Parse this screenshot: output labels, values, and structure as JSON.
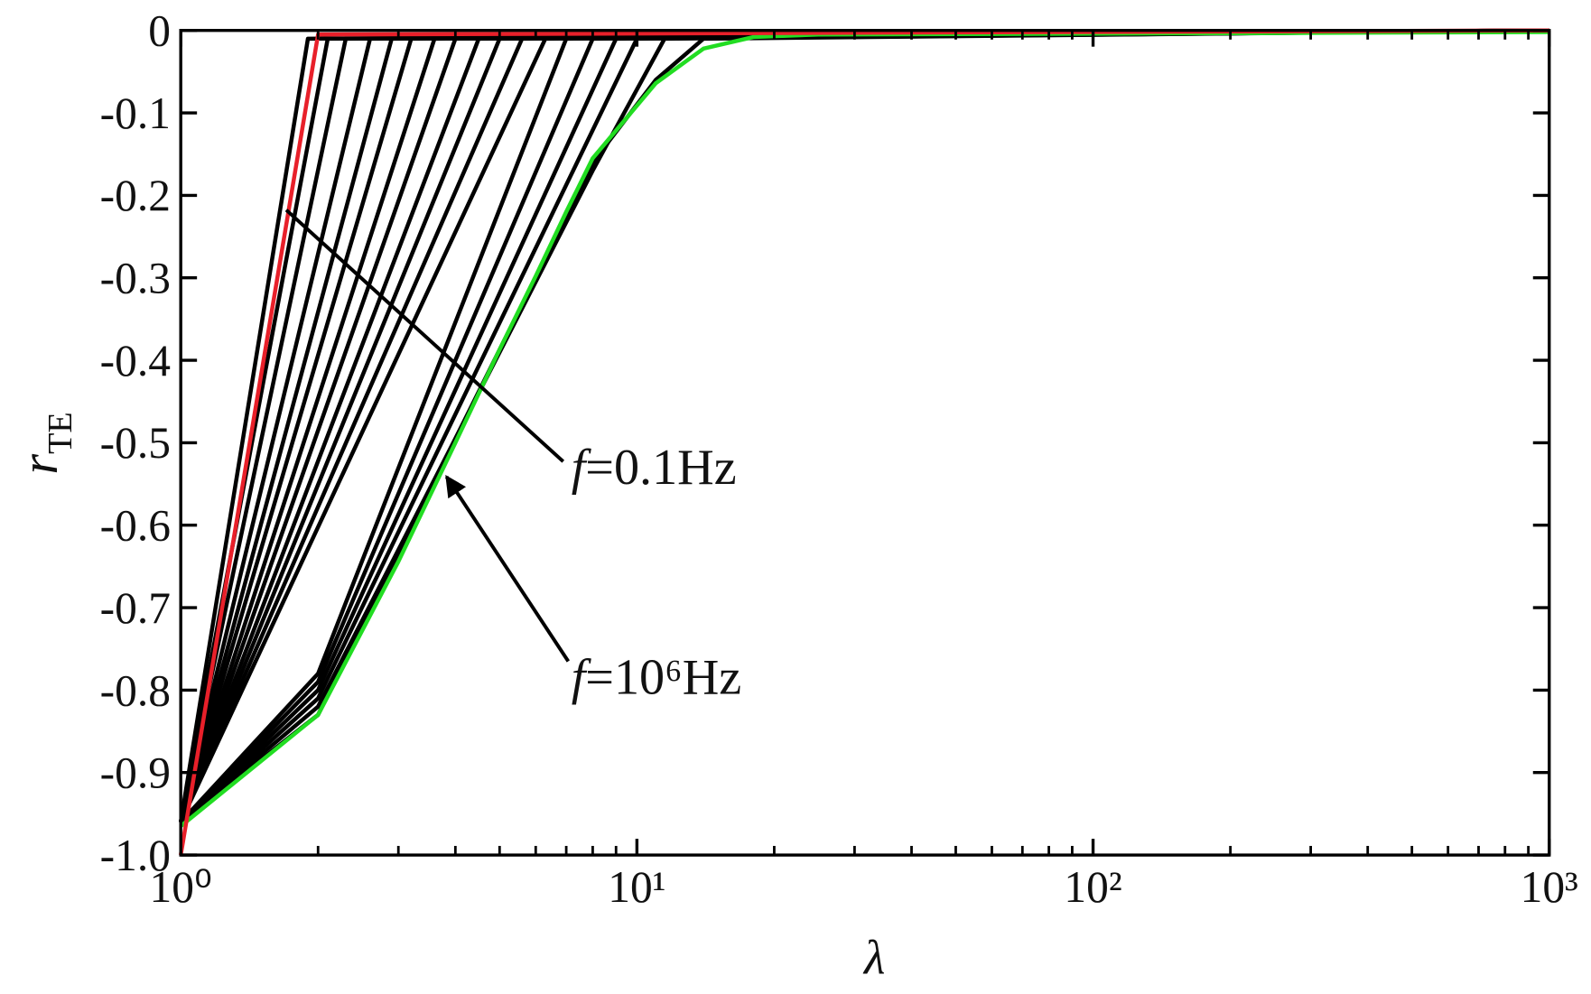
{
  "chart_data": {
    "type": "line",
    "xlabel": "λ",
    "ylabel": {
      "symbol": "r",
      "subscript": "TE"
    },
    "xscale": "log",
    "xlim": [
      1,
      1000
    ],
    "ylim": [
      -1.0,
      0
    ],
    "xticks": [
      {
        "value": 1,
        "label": "10⁰"
      },
      {
        "value": 10,
        "label": "10¹"
      },
      {
        "value": 100,
        "label": "10²"
      },
      {
        "value": 1000,
        "label": "10³"
      }
    ],
    "xminorticks": [
      2,
      3,
      4,
      5,
      6,
      7,
      8,
      9,
      20,
      30,
      40,
      50,
      60,
      70,
      80,
      90,
      200,
      300,
      400,
      500,
      600,
      700,
      800,
      900
    ],
    "yticks": [
      0,
      -0.1,
      -0.2,
      -0.3,
      -0.4,
      -0.5,
      -0.6,
      -0.7,
      -0.8,
      -0.9,
      {
        "value": -1.0,
        "label": "-1.0"
      }
    ],
    "annotations": [
      {
        "symbol": "f",
        "text": "=0.1Hz"
      },
      {
        "symbol": "f",
        "text": "=10⁶Hz"
      }
    ],
    "series": [
      {
        "color": "#000000",
        "x": [
          1,
          1.9,
          1000
        ],
        "values": [
          -0.96,
          -0.01,
          0
        ]
      },
      {
        "color": "#000000",
        "x": [
          1,
          2.1,
          1000
        ],
        "values": [
          -0.96,
          -0.01,
          0
        ]
      },
      {
        "color": "#000000",
        "x": [
          1,
          2.3,
          1000
        ],
        "values": [
          -0.96,
          -0.01,
          0
        ]
      },
      {
        "color": "#000000",
        "x": [
          1,
          2.6,
          1000
        ],
        "values": [
          -0.96,
          -0.01,
          0
        ]
      },
      {
        "color": "#000000",
        "x": [
          1,
          2.9,
          1000
        ],
        "values": [
          -0.96,
          -0.01,
          0
        ]
      },
      {
        "color": "#000000",
        "x": [
          1,
          3.2,
          1000
        ],
        "values": [
          -0.96,
          -0.01,
          0
        ]
      },
      {
        "color": "#000000",
        "x": [
          1,
          3.6,
          1000
        ],
        "values": [
          -0.96,
          -0.01,
          0
        ]
      },
      {
        "color": "#000000",
        "x": [
          1,
          4.0,
          1000
        ],
        "values": [
          -0.96,
          -0.01,
          0
        ]
      },
      {
        "color": "#000000",
        "x": [
          1,
          4.5,
          1000
        ],
        "values": [
          -0.96,
          -0.01,
          0
        ]
      },
      {
        "color": "#000000",
        "x": [
          1,
          5.0,
          1000
        ],
        "values": [
          -0.96,
          -0.01,
          0
        ]
      },
      {
        "color": "#000000",
        "x": [
          1,
          5.6,
          1000
        ],
        "values": [
          -0.96,
          -0.01,
          0
        ]
      },
      {
        "color": "#000000",
        "x": [
          1,
          6.3,
          1000
        ],
        "values": [
          -0.96,
          -0.01,
          0
        ]
      },
      {
        "color": "#000000",
        "x": [
          1,
          2,
          7.0,
          1000
        ],
        "values": [
          -0.96,
          -0.78,
          -0.01,
          0
        ]
      },
      {
        "color": "#000000",
        "x": [
          1,
          2,
          8.0,
          1000
        ],
        "values": [
          -0.96,
          -0.79,
          -0.01,
          0
        ]
      },
      {
        "color": "#000000",
        "x": [
          1,
          2,
          9.0,
          1000
        ],
        "values": [
          -0.96,
          -0.8,
          -0.01,
          0
        ]
      },
      {
        "color": "#000000",
        "x": [
          1,
          2,
          10.0,
          1000
        ],
        "values": [
          -0.96,
          -0.81,
          -0.01,
          0
        ]
      },
      {
        "color": "#000000",
        "x": [
          1,
          2,
          8,
          11.5,
          1000
        ],
        "values": [
          -0.96,
          -0.82,
          -0.17,
          -0.01,
          0
        ]
      },
      {
        "color": "#000000",
        "x": [
          1,
          2,
          8,
          11,
          14,
          1000
        ],
        "values": [
          -0.96,
          -0.83,
          -0.16,
          -0.06,
          -0.01,
          0
        ]
      },
      {
        "color": "#22dd22",
        "x": [
          1,
          2,
          3,
          4,
          5,
          6,
          7,
          8,
          11,
          14,
          18,
          25,
          1000
        ],
        "values": [
          -0.965,
          -0.83,
          -0.644,
          -0.5,
          -0.387,
          -0.298,
          -0.22,
          -0.155,
          -0.064,
          -0.022,
          -0.008,
          -0.005,
          -0.002
        ]
      },
      {
        "color": "#e8202a",
        "x": [
          1,
          2,
          1000
        ],
        "values": [
          -1.0,
          -0.005,
          0
        ]
      }
    ]
  }
}
